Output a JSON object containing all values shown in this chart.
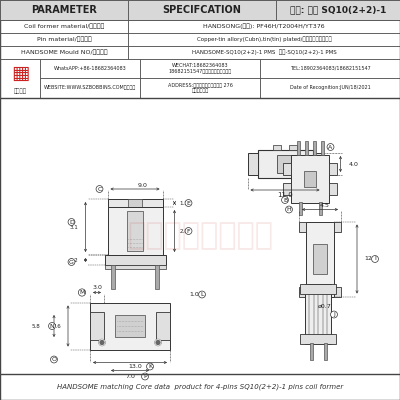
{
  "title": "品名: 焕升 SQ10(2+2)-1",
  "param_col": "PARAMETER",
  "spec_col": "SPECIFCATION",
  "row1_label": "Coil former material/线圈材料",
  "row1_val": "HANDSONG(胜方): PF46H/T2004H/YT376",
  "row2_label": "Pin material/端子材料",
  "row2_val": "Copper-tin allory(Cubn),tin(tin) plated/铜合金镀锡引出铜线",
  "row3_label": "HANDSOME Mould NO/模号品名",
  "row3_val": "HANDSOME-SQ10(2+2)-1 PMS  焕升-SQ10(2+2)-1 PMS",
  "c1r1": "WhatsAPP:+86-18682364083",
  "c2r1": "WECHAT:18682364083\n18682151547（备同号）来电语音包",
  "c3r1": "TEL:18902364083/18682151547",
  "c1r2": "WEBSITE:WWW.SZBOBBINS.COM（阿品）",
  "c2r2": "ADDRESS:东莞市石排镇下沙人连 276\n号焕升工业园",
  "c3r2": "Date of Recognition:JUN/18/2021",
  "footer": "HANDSOME matching Core data  product for 4-pins SQ10(2+2)-1 pins coil former",
  "bg": "#ffffff",
  "lc": "#333333",
  "hbg": "#d8d8d8",
  "rc": "#cc2222"
}
